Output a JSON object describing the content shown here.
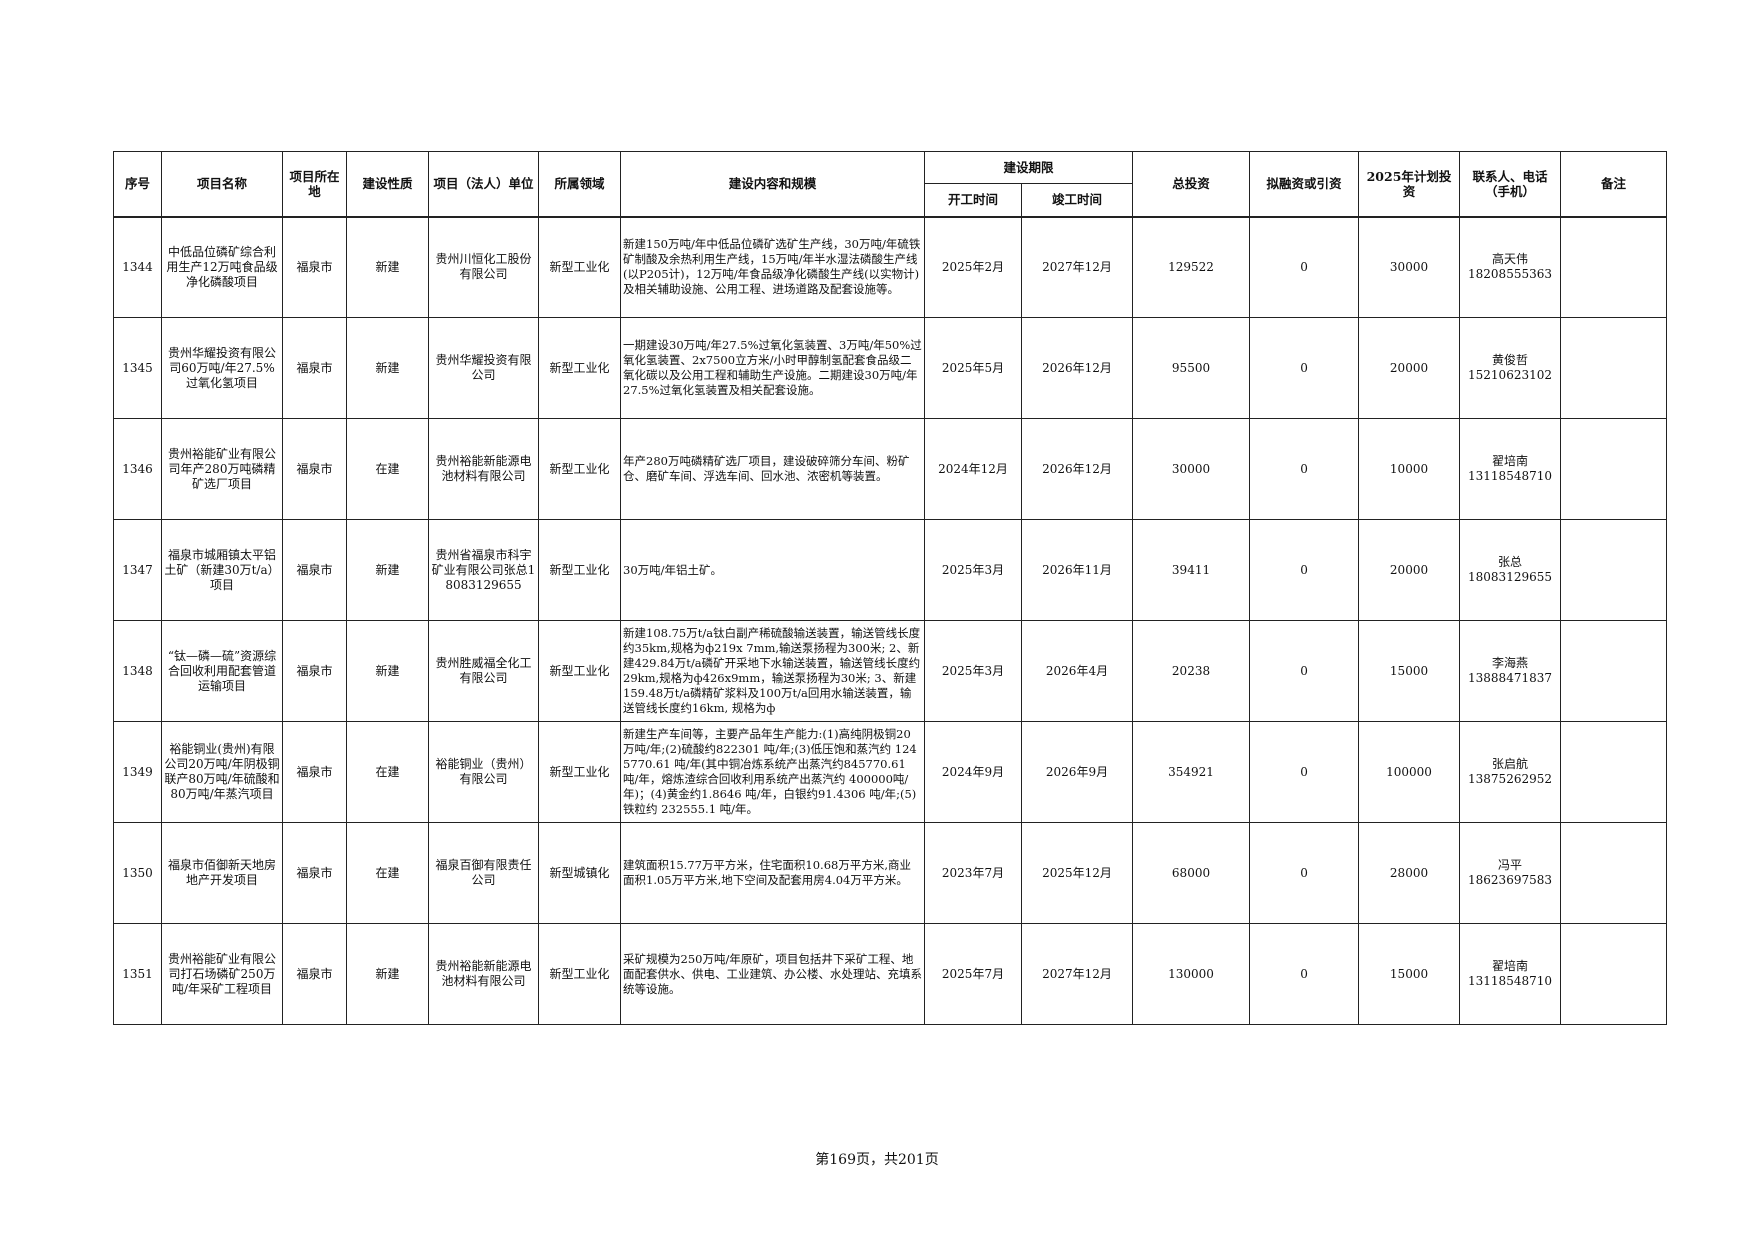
{
  "headers": {
    "seq": "序号",
    "name": "项目名称",
    "location": "项目所在地",
    "nature": "建设性质",
    "unit": "项目（法人）单位",
    "field": "所属领域",
    "content": "建设内容和规模",
    "period": "建设期限",
    "start": "开工时间",
    "end": "竣工时间",
    "total": "总投资",
    "financing": "拟融资或引资",
    "plan2025": "2025年计划投资",
    "contact": "联系人、电话（手机）",
    "remark": "备注"
  },
  "rows": [
    {
      "seq": "1344",
      "name": "中低品位磷矿综合利用生产12万吨食品级净化磷酸项目",
      "location": "福泉市",
      "nature": "新建",
      "unit": "贵州川恒化工股份有限公司",
      "field": "新型工业化",
      "content": "新建150万吨/年中低品位磷矿选矿生产线，30万吨/年硫铁矿制酸及余热利用生产线，15万吨/年半水湿法磷酸生产线(以P205计)，12万吨/年食品级净化磷酸生产线(以实物计)及相关辅助设施、公用工程、进场道路及配套设施等。",
      "start": "2025年2月",
      "end": "2027年12月",
      "total": "129522",
      "financing": "0",
      "plan2025": "30000",
      "contact_name": "高天伟",
      "contact_phone": "18208555363",
      "remark": ""
    },
    {
      "seq": "1345",
      "name": "贵州华耀投资有限公司60万吨/年27.5%过氧化氢项目",
      "location": "福泉市",
      "nature": "新建",
      "unit": "贵州华耀投资有限公司",
      "field": "新型工业化",
      "content": "一期建设30万吨/年27.5%过氧化氢装置、3万吨/年50%过氧化氢装置、2x7500立方米/小时甲醇制氢配套食品级二氧化碳以及公用工程和辅助生产设施。二期建设30万吨/年27.5%过氧化氢装置及相关配套设施。",
      "start": "2025年5月",
      "end": "2026年12月",
      "total": "95500",
      "financing": "0",
      "plan2025": "20000",
      "contact_name": "黄俊哲",
      "contact_phone": "15210623102",
      "remark": ""
    },
    {
      "seq": "1346",
      "name": "贵州裕能矿业有限公司年产280万吨磷精矿选厂项目",
      "location": "福泉市",
      "nature": "在建",
      "unit": "贵州裕能新能源电池材料有限公司",
      "field": "新型工业化",
      "content": "年产280万吨磷精矿选厂项目，建设破碎筛分车间、粉矿仓、磨矿车间、浮选车间、回水池、浓密机等装置。",
      "start": "2024年12月",
      "end": "2026年12月",
      "total": "30000",
      "financing": "0",
      "plan2025": "10000",
      "contact_name": "翟培南",
      "contact_phone": "13118548710",
      "remark": ""
    },
    {
      "seq": "1347",
      "name": "福泉市城厢镇太平铝土矿（新建30万t/a）项目",
      "location": "福泉市",
      "nature": "新建",
      "unit": "贵州省福泉市科宇矿业有限公司张总18083129655",
      "field": "新型工业化",
      "content": "30万吨/年铝土矿。",
      "start": "2025年3月",
      "end": "2026年11月",
      "total": "39411",
      "financing": "0",
      "plan2025": "20000",
      "contact_name": "张总",
      "contact_phone": "18083129655",
      "remark": ""
    },
    {
      "seq": "1348",
      "name": "“钛—磷—硫”资源综合回收利用配套管道运输项目",
      "location": "福泉市",
      "nature": "新建",
      "unit": "贵州胜威福全化工有限公司",
      "field": "新型工业化",
      "content": "新建108.75万t/a钛白副产稀硫酸输送装置，输送管线长度约35km,规格为ф219x 7mm,输送泵扬程为300米; 2、新建429.84万t/a磷矿开采地下水输送装置，输送管线长度约29km,规格为ф426x9mm，输送泵扬程为30米; 3、新建159.48万t/a磷精矿浆料及100万t/a回用水输送装置，输送管线长度约16km, 规格为ф",
      "start": "2025年3月",
      "end": "2026年4月",
      "total": "20238",
      "financing": "0",
      "plan2025": "15000",
      "contact_name": "李海燕",
      "contact_phone": "13888471837",
      "remark": ""
    },
    {
      "seq": "1349",
      "name": "裕能铜业(贵州)有限公司20万吨/年阴极铜联产80万吨/年硫酸和80万吨/年蒸汽项目",
      "location": "福泉市",
      "nature": "在建",
      "unit": "裕能铜业（贵州）有限公司",
      "field": "新型工业化",
      "content": "新建生产车间等，主要产品年生产能力:(1)高纯阴极铜20万吨/年;(2)硫酸约822301 吨/年;(3)低压饱和蒸汽约 1245770.61 吨/年(其中铜冶炼系统产出蒸汽约845770.61 吨/年，熔炼渣综合回收利用系统产出蒸汽约 400000吨/年)；(4)黄金约1.8646 吨/年，白银约91.4306 吨/年;(5)铁粒约 232555.1 吨/年。",
      "start": "2024年9月",
      "end": "2026年9月",
      "total": "354921",
      "financing": "0",
      "plan2025": "100000",
      "contact_name": "张启航",
      "contact_phone": "13875262952",
      "remark": ""
    },
    {
      "seq": "1350",
      "name": "福泉市佰御新天地房地产开发项目",
      "location": "福泉市",
      "nature": "在建",
      "unit": "福泉百御有限责任公司",
      "field": "新型城镇化",
      "content": "建筑面积15.77万平方米，住宅面积10.68万平方米,商业面积1.05万平方米,地下空间及配套用房4.04万平方米。",
      "start": "2023年7月",
      "end": "2025年12月",
      "total": "68000",
      "financing": "0",
      "plan2025": "28000",
      "contact_name": "冯平",
      "contact_phone": "18623697583",
      "remark": ""
    },
    {
      "seq": "1351",
      "name": "贵州裕能矿业有限公司打石场磷矿250万吨/年采矿工程项目",
      "location": "福泉市",
      "nature": "新建",
      "unit": "贵州裕能新能源电池材料有限公司",
      "field": "新型工业化",
      "content": "采矿规模为250万吨/年原矿，项目包括井下采矿工程、地面配套供水、供电、工业建筑、办公楼、水处理站、充填系统等设施。",
      "start": "2025年7月",
      "end": "2027年12月",
      "total": "130000",
      "financing": "0",
      "plan2025": "15000",
      "contact_name": "翟培南",
      "contact_phone": "13118548710",
      "remark": ""
    }
  ],
  "footer": "第169页，共201页"
}
